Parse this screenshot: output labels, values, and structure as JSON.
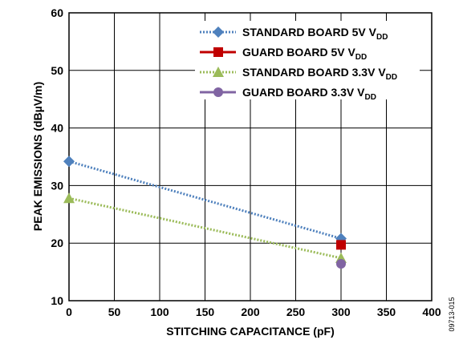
{
  "chart_data": {
    "type": "line",
    "xlabel": "STITCHING CAPACITANCE (pF)",
    "ylabel": "PEAK EMISSIONS (dBµV/m)",
    "xlim": [
      0,
      400
    ],
    "ylim": [
      10,
      60
    ],
    "xticks": [
      0,
      50,
      100,
      150,
      200,
      250,
      300,
      350,
      400
    ],
    "yticks": [
      10,
      20,
      30,
      40,
      50,
      60
    ],
    "grid": true,
    "legend_position": "top-right",
    "series": [
      {
        "name": "STANDARD BOARD 5V V",
        "name_sub": "DD",
        "color": "#4F81BD",
        "marker": "diamond",
        "line": "dotted",
        "x": [
          0,
          300
        ],
        "y": [
          34.2,
          20.8
        ]
      },
      {
        "name": "GUARD BOARD 5V V",
        "name_sub": "DD",
        "color": "#C00000",
        "marker": "square",
        "line": "solid",
        "x": [
          300
        ],
        "y": [
          19.7
        ]
      },
      {
        "name": "STANDARD BOARD 3.3V V",
        "name_sub": "DD",
        "color": "#9BBB59",
        "marker": "triangle",
        "line": "dotted",
        "x": [
          0,
          300
        ],
        "y": [
          27.8,
          17.4
        ]
      },
      {
        "name": "GUARD BOARD 3.3V V",
        "name_sub": "DD",
        "color": "#8064A2",
        "marker": "circle",
        "line": "solid",
        "x": [
          300
        ],
        "y": [
          16.4
        ]
      }
    ]
  },
  "figure_id": "09713-015"
}
